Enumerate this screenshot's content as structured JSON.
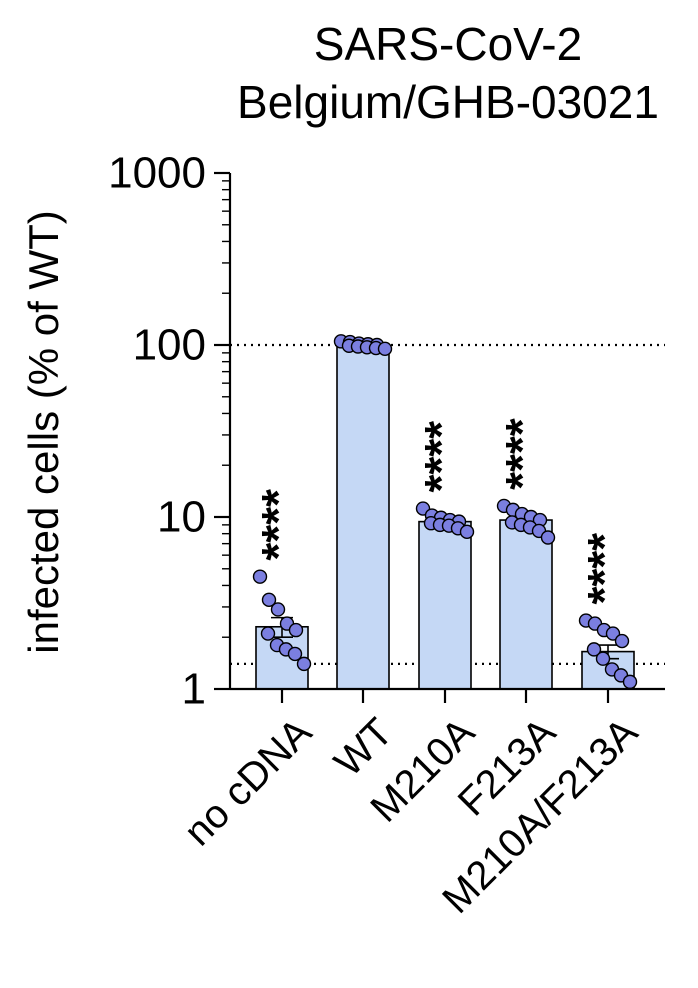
{
  "chart_data": {
    "type": "bar",
    "title_lines": [
      "SARS-CoV-2",
      "Belgium/GHB-03021"
    ],
    "ylabel": "infected cells (% of WT)",
    "yscale": "log",
    "ylim": [
      1,
      1000
    ],
    "yticks": [
      1,
      10,
      100,
      1000
    ],
    "ytick_labels": [
      "1",
      "10",
      "100",
      "1000"
    ],
    "reference_lines": [
      100,
      1.4
    ],
    "colors": {
      "bar_fill": "#c5d8f5",
      "point_fill": "#7b7fe0",
      "stroke": "#000000"
    },
    "categories": [
      "no cDNA",
      "WT",
      "M210A",
      "F213A",
      "M210A/F213A"
    ],
    "values": [
      2.3,
      100,
      9.4,
      9.6,
      1.65
    ],
    "sem": [
      0.3,
      2,
      0.4,
      0.5,
      0.15
    ],
    "significance": [
      "****",
      "",
      "****",
      "****",
      "****"
    ],
    "points": [
      [
        4.5,
        3.3,
        2.9,
        2.4,
        2.2,
        2.1,
        1.8,
        1.7,
        1.6,
        1.4
      ],
      [
        105,
        104,
        102,
        101,
        100,
        99,
        98,
        97,
        96,
        95
      ],
      [
        11.2,
        10.2,
        9.9,
        9.6,
        9.4,
        9.2,
        9.0,
        8.9,
        8.6,
        8.2
      ],
      [
        11.6,
        11.0,
        10.4,
        10.0,
        9.6,
        9.3,
        9.0,
        8.7,
        8.3,
        7.6
      ],
      [
        2.5,
        2.4,
        2.2,
        2.1,
        1.9,
        1.7,
        1.5,
        1.3,
        1.2,
        1.1
      ]
    ]
  }
}
